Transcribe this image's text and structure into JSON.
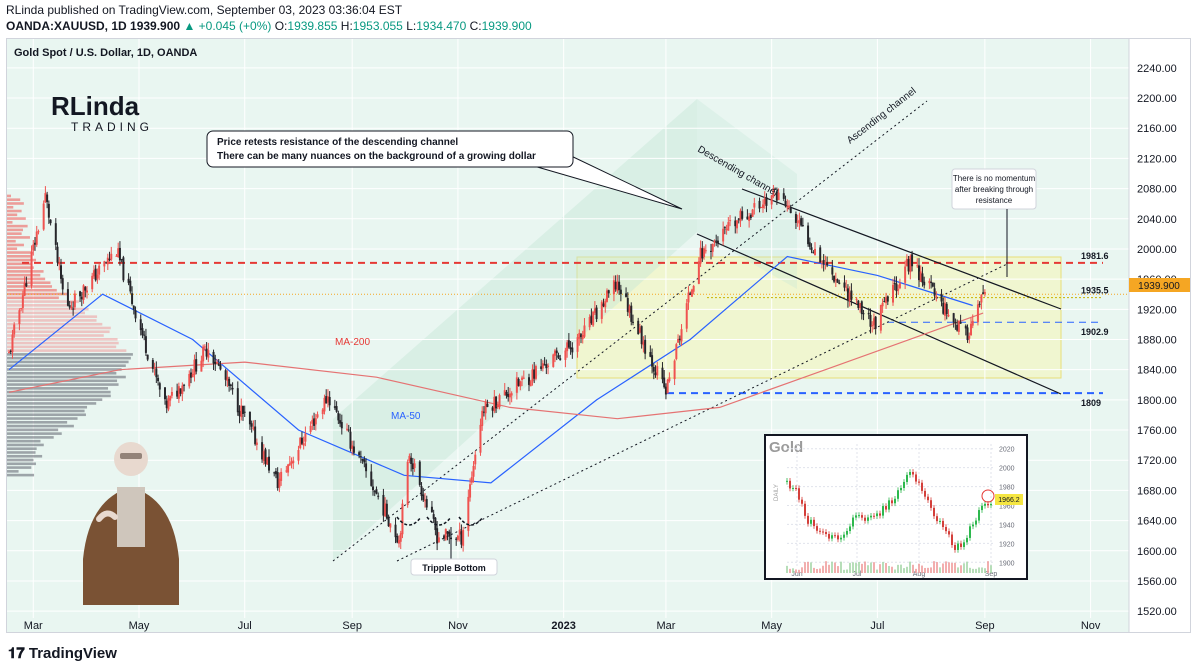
{
  "header": {
    "line1": "RLinda published on TradingView.com, September 03, 2023 03:36:04 EST",
    "symbol": "OANDA:XAUUSD, 1D",
    "last": "1939.900",
    "change": "▲ +0.045 (+0%)",
    "o_label": "O:",
    "o": "1939.855",
    "h_label": "H:",
    "h": "1953.055",
    "l_label": "L:",
    "l": "1934.470",
    "c_label": "C:",
    "c": "1939.900"
  },
  "chart_title": "Gold Spot / U.S. Dollar, 1D, OANDA",
  "logo": {
    "line1": "RLinda",
    "line2": "TRADING"
  },
  "annotations": {
    "callout_line1": "Price retests resistance of the descending channel",
    "callout_line2": "There can be many nuances on the background of a growing dollar",
    "momentum_1": "There is no momentum",
    "momentum_2": "after breaking through",
    "momentum_3": "resistance",
    "triple_bottom": "Tripple Bottom",
    "ascending_channel": "Ascending channel",
    "descending_channel": "Descending channel",
    "ma200": "MA-200",
    "ma50": "MA-50"
  },
  "levels": [
    {
      "label": "1981.6",
      "value": 1981.6,
      "color": "#e53935",
      "style": "dashed"
    },
    {
      "label": "1935.5",
      "value": 1935.5,
      "color": "#c8b400",
      "style": "dotted"
    },
    {
      "label": "1902.9",
      "value": 1902.9,
      "color": "#2962ff",
      "style": "dashed"
    },
    {
      "label": "1809",
      "value": 1809,
      "color": "#2962ff",
      "style": "dashed"
    }
  ],
  "price_badge": "1939.900",
  "inset": {
    "title": "Gold",
    "side_label": "DAILY",
    "badge": "1966.2",
    "y_ticks": [
      "2020",
      "2000",
      "1980",
      "1960",
      "1940",
      "1920",
      "1900"
    ],
    "x_ticks": [
      "Jun",
      "Jul",
      "Aug",
      "Sep"
    ]
  },
  "colors": {
    "up": "#ef5350",
    "down": "#26262b",
    "ma50": "#2962ff",
    "ma200": "#e57373",
    "accent": "#089981",
    "badge": "#f5a623"
  },
  "footer": {
    "brand": "TradingView"
  },
  "chart_data": {
    "type": "candlestick",
    "title": "Gold Spot / U.S. Dollar, 1D, OANDA",
    "x_ticks": [
      "Mar",
      "May",
      "Jul",
      "Sep",
      "Nov",
      "2023",
      "Mar",
      "May",
      "Jul",
      "Sep",
      "Nov"
    ],
    "y_ticks": [
      2240,
      2200,
      2160,
      2120,
      2080,
      2040,
      2000,
      1960,
      1920,
      1880,
      1840,
      1800,
      1760,
      1720,
      1680,
      1640,
      1600,
      1560,
      1520
    ],
    "ylim": [
      1495,
      2265
    ],
    "series": [
      {
        "name": "Price",
        "points": [
          [
            "2022-02-15",
            1860
          ],
          [
            "2022-03-08",
            2070
          ],
          [
            "2022-03-20",
            1920
          ],
          [
            "2022-04-18",
            1998
          ],
          [
            "2022-05-16",
            1790
          ],
          [
            "2022-06-10",
            1870
          ],
          [
            "2022-07-20",
            1690
          ],
          [
            "2022-08-18",
            1805
          ],
          [
            "2022-09-28",
            1615
          ],
          [
            "2022-10-04",
            1730
          ],
          [
            "2022-10-20",
            1620
          ],
          [
            "2022-11-03",
            1618
          ],
          [
            "2022-11-15",
            1785
          ],
          [
            "2023-01-10",
            1880
          ],
          [
            "2023-02-01",
            1955
          ],
          [
            "2023-03-01",
            1810
          ],
          [
            "2023-03-20",
            1990
          ],
          [
            "2023-04-13",
            2040
          ],
          [
            "2023-05-04",
            2075
          ],
          [
            "2023-06-01",
            1980
          ],
          [
            "2023-06-29",
            1900
          ],
          [
            "2023-07-20",
            1985
          ],
          [
            "2023-08-21",
            1884
          ],
          [
            "2023-09-01",
            1940
          ]
        ]
      },
      {
        "name": "MA-50",
        "points": [
          [
            "2022-02-15",
            1840
          ],
          [
            "2022-04-10",
            1940
          ],
          [
            "2022-06-01",
            1880
          ],
          [
            "2022-08-01",
            1760
          ],
          [
            "2022-10-01",
            1700
          ],
          [
            "2022-11-20",
            1690
          ],
          [
            "2023-01-20",
            1800
          ],
          [
            "2023-03-15",
            1880
          ],
          [
            "2023-05-10",
            1990
          ],
          [
            "2023-07-01",
            1965
          ],
          [
            "2023-08-25",
            1925
          ]
        ]
      },
      {
        "name": "MA-200",
        "points": [
          [
            "2022-02-15",
            1810
          ],
          [
            "2022-04-20",
            1840
          ],
          [
            "2022-07-01",
            1850
          ],
          [
            "2022-09-15",
            1830
          ],
          [
            "2022-12-01",
            1790
          ],
          [
            "2023-02-01",
            1775
          ],
          [
            "2023-04-01",
            1790
          ],
          [
            "2023-06-01",
            1840
          ],
          [
            "2023-08-31",
            1915
          ]
        ]
      }
    ],
    "levels": [
      1981.6,
      1935.5,
      1902.9,
      1809
    ],
    "current_price": 1939.9,
    "grid": true
  }
}
